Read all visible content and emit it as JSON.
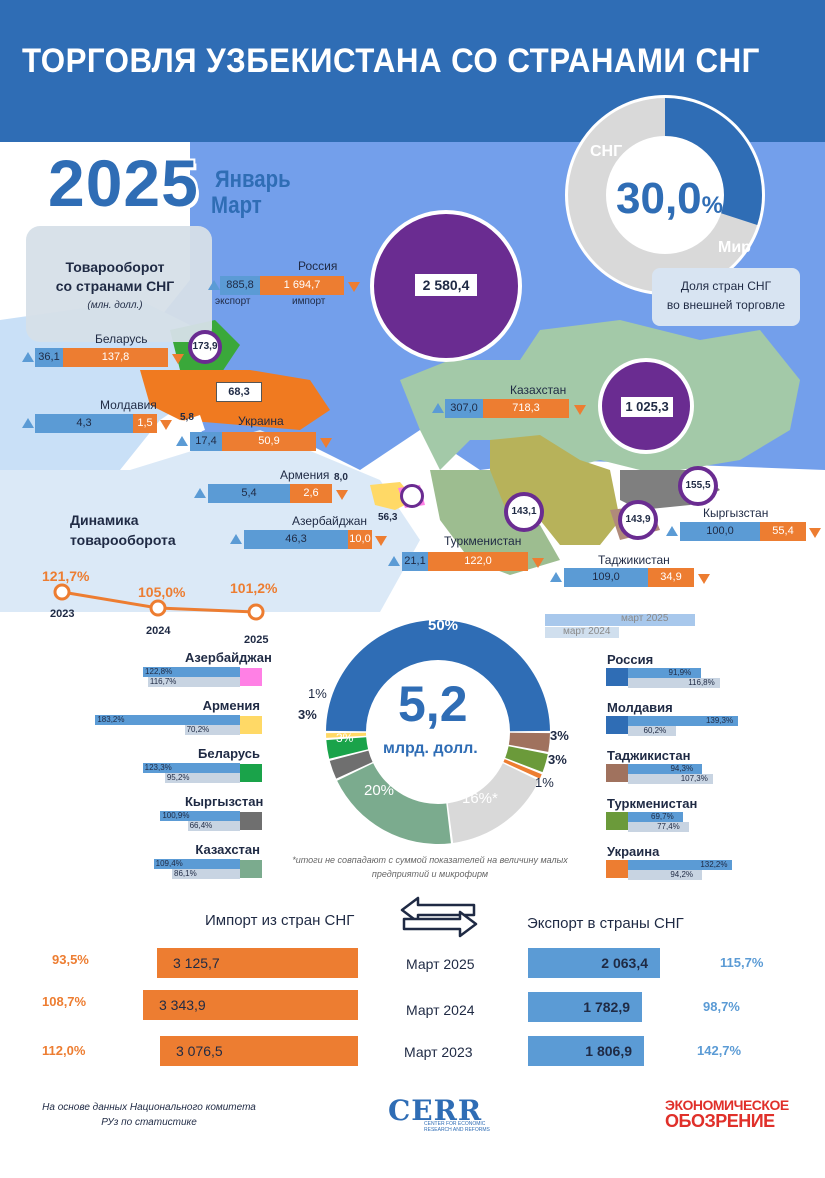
{
  "header": {
    "title": "ТОРГОВЛЯ УЗБЕКИСТАНА СО СТРАНАМИ СНГ"
  },
  "period": {
    "year": "2025",
    "months_line1": "Январь",
    "months_line2": "Март"
  },
  "turnover_box": {
    "title_line1": "Товарооборот",
    "title_line2": "со странами СНГ",
    "unit": "(млн. долл.)"
  },
  "share": {
    "cis_label": "СНГ",
    "world_label": "Мир",
    "value": "30,0",
    "unit": "%",
    "caption_line1": "Доля стран СНГ",
    "caption_line2": "во внешней торговле",
    "cis_share": 0.3
  },
  "russia": {
    "name": "Россия",
    "export": "885,8",
    "import": "1 694,7",
    "export_label": "экспорт",
    "import_label": "импорт",
    "total": "2 580,4"
  },
  "kazakhstan": {
    "name": "Казахстан",
    "export": "307,0",
    "import": "718,3",
    "total": "1 025,3"
  },
  "map_countries": [
    {
      "key": "belarus",
      "name": "Беларусь",
      "export": "36,1",
      "import": "137,8",
      "total": "173,9"
    },
    {
      "key": "moldova",
      "name": "Молдавия",
      "export": "4,3",
      "import": "1,5",
      "total": "5,8"
    },
    {
      "key": "ukraine",
      "name": "Украина",
      "export": "17,4",
      "import": "50,9",
      "total": "68,3"
    },
    {
      "key": "armenia",
      "name": "Армения",
      "export": "5,4",
      "import": "2,6",
      "total": "8,0"
    },
    {
      "key": "azerbaijan",
      "name": "Азербайджан",
      "export": "46,3",
      "import": "10,0",
      "total": "56,3"
    },
    {
      "key": "turkmenistan",
      "name": "Туркменистан",
      "export": "21,1",
      "import": "122,0",
      "total": "143,1"
    },
    {
      "key": "tajikistan",
      "name": "Таджикистан",
      "export": "109,0",
      "import": "34,9",
      "total": "143,9"
    },
    {
      "key": "kyrgyzstan",
      "name": "Кыргызстан",
      "export": "100,0",
      "import": "55,4",
      "total": "155,5"
    }
  ],
  "dynamics": {
    "title_line1": "Динамика",
    "title_line2": "товарооборота",
    "points": [
      {
        "year": "2023",
        "value": "121,7%"
      },
      {
        "year": "2024",
        "value": "105,0%"
      },
      {
        "year": "2025",
        "value": "101,2%"
      }
    ]
  },
  "donut": {
    "total": "5,2",
    "unit": "млрд. долл.",
    "footnote": "*итоги не совпадают с суммой показателей на величину малых предприятий и микрофирм",
    "legend": {
      "current": "март 2025",
      "previous": "март 2024"
    },
    "segments": [
      {
        "country": "Россия",
        "label": "50%",
        "value": 50,
        "color": "#2f6db5"
      },
      {
        "country": "Таджикистан",
        "label": "3%",
        "value": 3,
        "color": "#a0725e"
      },
      {
        "country": "Туркменистан",
        "label": "3%",
        "value": 3,
        "color": "#6b9a3a"
      },
      {
        "country": "Украина",
        "label": "1%",
        "value": 1,
        "color": "#ed7d31"
      },
      {
        "country": "Мир/прочие",
        "label": "16%*",
        "value": 16,
        "color": "#d9d9d9"
      },
      {
        "country": "Казахстан",
        "label": "20%",
        "value": 20,
        "color": "#7bab8e"
      },
      {
        "country": "Кыргызстан",
        "label": "3%",
        "value": 3,
        "color": "#6f6f6f"
      },
      {
        "country": "Беларусь",
        "label": "3%",
        "value": 3,
        "color": "#1aa34a"
      },
      {
        "country": "Армения",
        "label": "1%",
        "value": 1,
        "color": "#ffd966"
      }
    ]
  },
  "left_growth": [
    {
      "name": "Азербайджан",
      "cur": "122,8%",
      "prev": "116,7%",
      "color": "#ff80e5"
    },
    {
      "name": "Армения",
      "cur": "183,2%",
      "prev": "70,2%",
      "color": "#ffd966"
    },
    {
      "name": "Беларусь",
      "cur": "123,3%",
      "prev": "95,2%",
      "color": "#1aa34a"
    },
    {
      "name": "Кыргызстан",
      "cur": "100,9%",
      "prev": "66,4%",
      "color": "#6f6f6f"
    },
    {
      "name": "Казахстан",
      "cur": "109,4%",
      "prev": "86,1%",
      "color": "#7bab8e"
    }
  ],
  "right_growth": [
    {
      "name": "Россия",
      "cur": "91,9%",
      "prev": "116,8%",
      "color": "#2f6db5"
    },
    {
      "name": "Молдавия",
      "cur": "139,3%",
      "prev": "60,2%",
      "color": "#2f6db5"
    },
    {
      "name": "Таджикистан",
      "cur": "94,3%",
      "prev": "107,3%",
      "color": "#a0725e"
    },
    {
      "name": "Туркменистан",
      "cur": "69,7%",
      "prev": "77,4%",
      "color": "#6b9a3a"
    },
    {
      "name": "Украина",
      "cur": "132,2%",
      "prev": "94,2%",
      "color": "#ed7d31"
    }
  ],
  "trade": {
    "import_title": "Импорт из стран СНГ",
    "export_title": "Экспорт в страны СНГ",
    "rows": [
      {
        "month": "Март 2025",
        "imp_pct": "93,5%",
        "imp": "3 125,7",
        "exp": "2 063,4",
        "exp_pct": "115,7%"
      },
      {
        "month": "Март 2024",
        "imp_pct": "108,7%",
        "imp": "3 343,9",
        "exp": "1 782,9",
        "exp_pct": "98,7%"
      },
      {
        "month": "Март 2023",
        "imp_pct": "112,0%",
        "imp": "3 076,5",
        "exp": "1 806,9",
        "exp_pct": "142,7%"
      }
    ]
  },
  "footer": {
    "source_line1": "На основе данных Национального комитета",
    "source_line2": "РУз по статистике",
    "cerr": "CERR",
    "cerr_sub": "CENTER FOR ECONOMIC RESEARCH AND REFORMS",
    "eo_line1": "ЭКОНОМИЧЕСКОЕ",
    "eo_line2": "ОБОЗРЕНИЕ"
  }
}
